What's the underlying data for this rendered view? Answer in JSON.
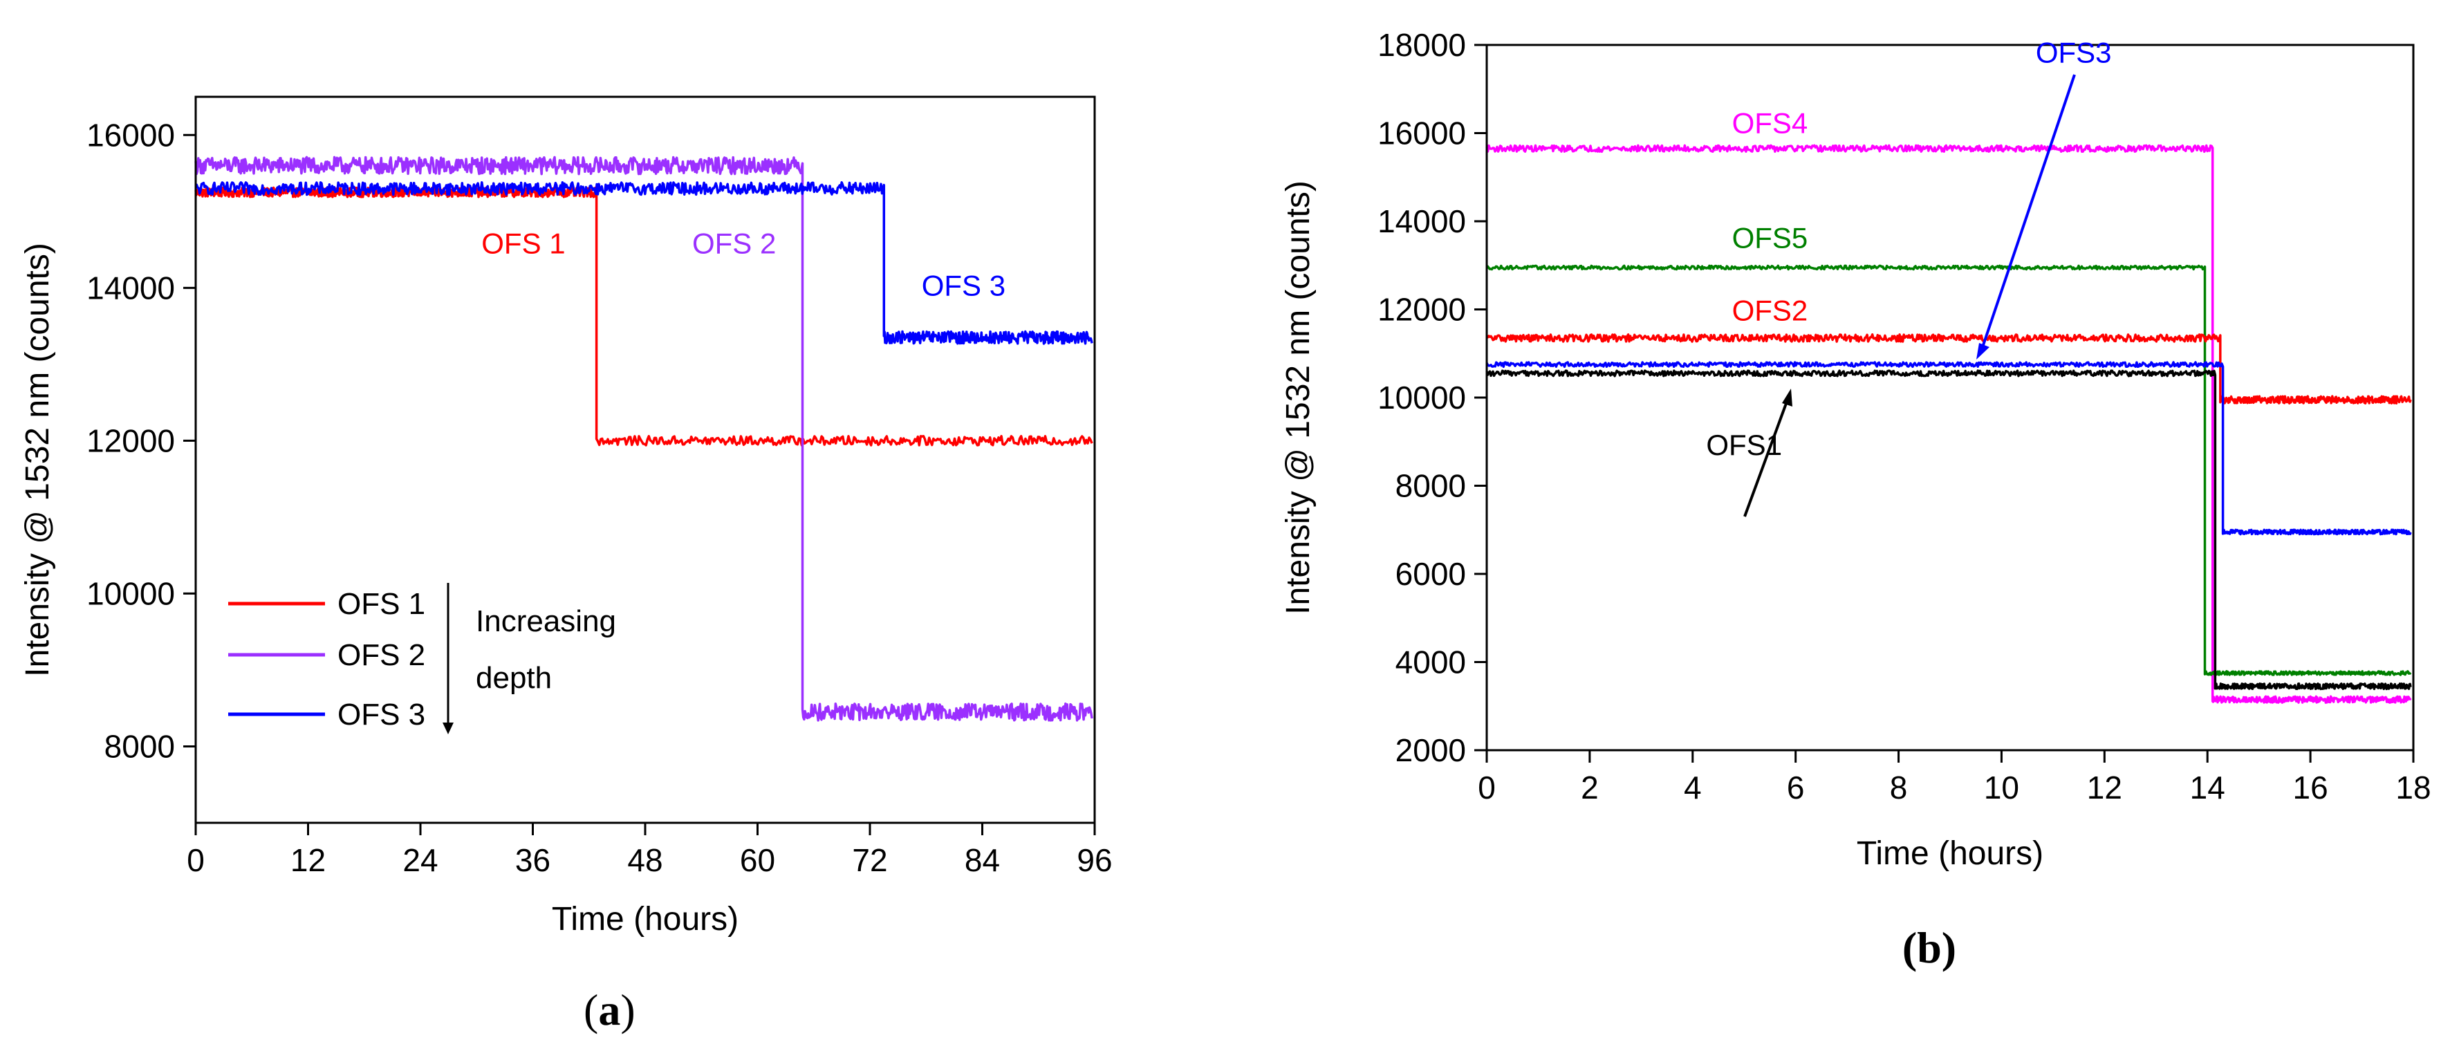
{
  "chart_data": [
    {
      "type": "line",
      "panel_label": "(a)",
      "panel_label_inner": "a",
      "xlabel": "Time (hours)",
      "ylabel": "Intensity @ 1532 nm (counts)",
      "xlim": [
        0,
        96
      ],
      "ylim": [
        7000,
        16500
      ],
      "x_ticks": [
        0,
        12,
        24,
        36,
        48,
        60,
        72,
        84,
        96
      ],
      "y_ticks": [
        8000,
        10000,
        12000,
        14000,
        16000
      ],
      "grid": false,
      "legend_position": "bottom-left",
      "legend_annotation": [
        "Increasing",
        "depth"
      ],
      "series": [
        {
          "name": "OFS 1",
          "color": "#ff0000",
          "before": 15250,
          "after": 12000,
          "step_time": 42.8,
          "noise": 60
        },
        {
          "name": "OFS 2",
          "color": "#9b30ff",
          "before": 15600,
          "after": 8450,
          "step_time": 64.8,
          "noise": 110
        },
        {
          "name": "OFS 3",
          "color": "#0000ff",
          "before": 15300,
          "after": 13350,
          "step_time": 73.5,
          "noise": 80
        }
      ],
      "annotations": [
        {
          "text": "OFS 1",
          "color": "#ff0000",
          "x": 35,
          "y": 14450
        },
        {
          "text": "OFS 2",
          "color": "#9b30ff",
          "x": 57.5,
          "y": 14450
        },
        {
          "text": "OFS 3",
          "color": "#0000ff",
          "x": 82,
          "y": 13900
        }
      ]
    },
    {
      "type": "line",
      "panel_label": "(b)",
      "xlabel": "Time (hours)",
      "ylabel": "Intensity @ 1532 nm (counts)",
      "xlim": [
        0,
        18
      ],
      "ylim": [
        2000,
        18000
      ],
      "x_ticks": [
        0,
        2,
        4,
        6,
        8,
        10,
        12,
        14,
        16,
        18
      ],
      "y_ticks": [
        2000,
        4000,
        6000,
        8000,
        10000,
        12000,
        14000,
        16000,
        18000
      ],
      "grid": false,
      "series": [
        {
          "name": "OFS4",
          "color": "#ff00ff",
          "before": 15650,
          "after": 3150,
          "step_time": 14.1,
          "noise": 70
        },
        {
          "name": "OFS5",
          "color": "#008000",
          "before": 12950,
          "after": 3750,
          "step_time": 13.95,
          "noise": 40
        },
        {
          "name": "OFS2",
          "color": "#ff0000",
          "before": 11350,
          "after": 9950,
          "step_time": 14.25,
          "noise": 80
        },
        {
          "name": "OFS3",
          "color": "#0000ff",
          "before": 10750,
          "after": 6950,
          "step_time": 14.3,
          "noise": 50
        },
        {
          "name": "OFS1",
          "color": "#000000",
          "before": 10550,
          "after": 3450,
          "step_time": 14.15,
          "noise": 60
        }
      ],
      "annotations": [
        {
          "text": "OFS4",
          "color": "#ff00ff",
          "x": 5.5,
          "y": 16000
        },
        {
          "text": "OFS5",
          "color": "#008000",
          "x": 5.5,
          "y": 13400
        },
        {
          "text": "OFS2",
          "color": "#ff0000",
          "x": 5.5,
          "y": 11750
        },
        {
          "text": "OFS3",
          "color": "#0000ff",
          "x": 11.4,
          "y": 17600
        },
        {
          "text": "OFS1",
          "color": "#000000",
          "x": 5.0,
          "y": 8700
        }
      ]
    }
  ]
}
